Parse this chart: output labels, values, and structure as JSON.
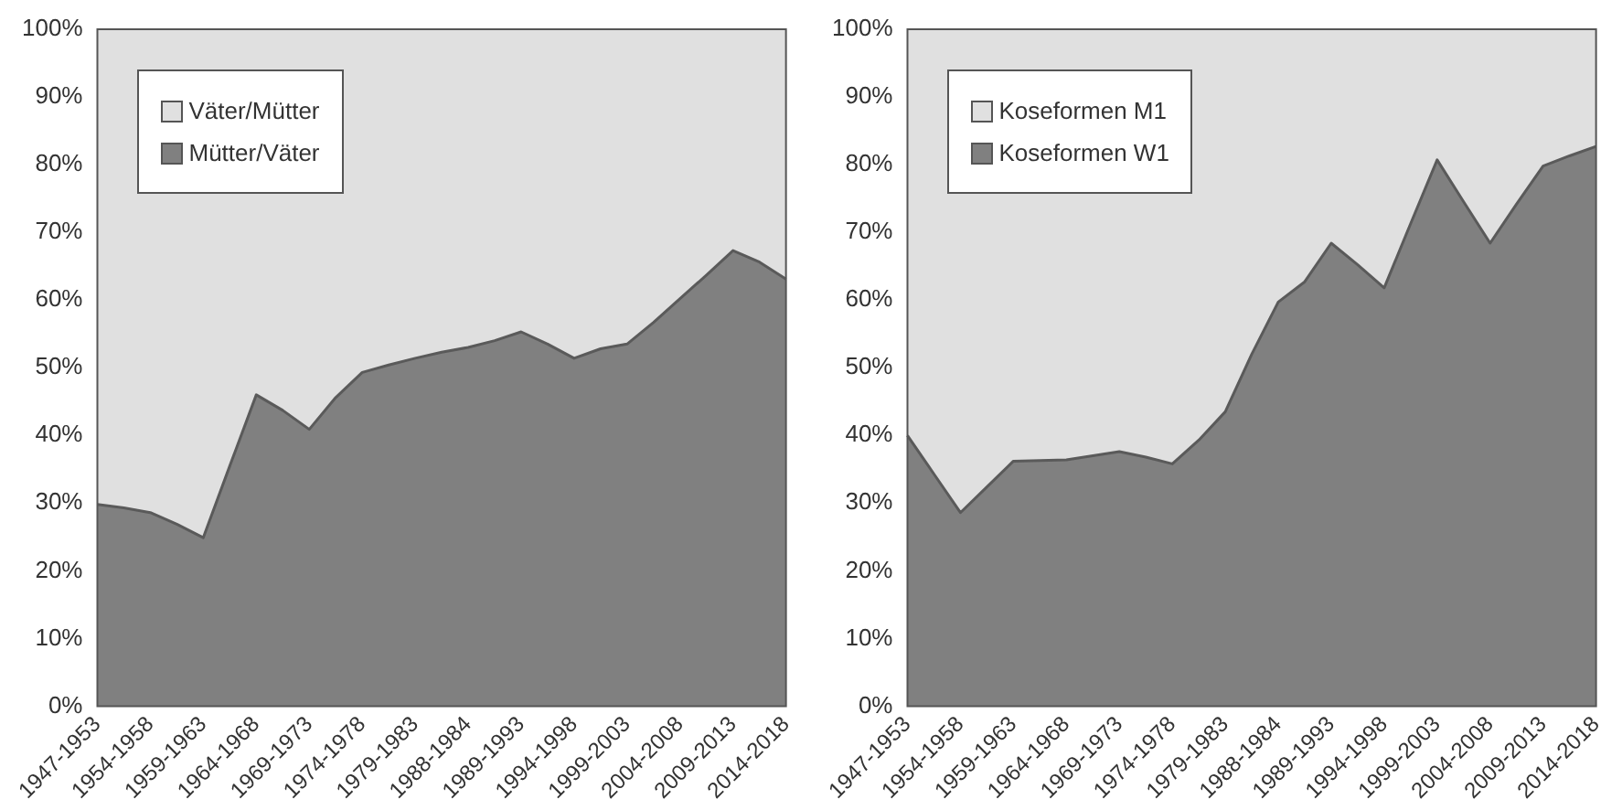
{
  "chart_data": [
    {
      "type": "area",
      "stacked": true,
      "legend": "top left",
      "grid": false,
      "categories": [
        "1947-1953",
        null,
        "1954-1958",
        null,
        "1959-1963",
        null,
        "1964-1968",
        null,
        "1969-1973",
        null,
        "1974-1978",
        null,
        "1979-1983",
        null,
        "1988-1984",
        null,
        "1989-1993",
        null,
        "1994-1998",
        null,
        "1999-2003",
        null,
        "2004-2008",
        null,
        "2009-2013",
        null,
        "2014-2018"
      ],
      "series": [
        {
          "name": "Mütter/Väter",
          "color": "#808080",
          "values": [
            29.8,
            29.3,
            28.6,
            26.9,
            24.9,
            35.5,
            46,
            43.7,
            40.9,
            45.6,
            49.3,
            50.4,
            51.4,
            52.3,
            53,
            54,
            55.3,
            53.5,
            51.4,
            52.8,
            53.5,
            56.7,
            60.2,
            63.7,
            67.3,
            65.6,
            63.1
          ]
        },
        {
          "name": "Väter/Mütter",
          "color": "#e0e0e0",
          "values": [
            70.2,
            70.7,
            71.4,
            73.1,
            75.1,
            64.5,
            54,
            56.3,
            59.1,
            54.4,
            50.7,
            49.6,
            48.6,
            47.7,
            47,
            46,
            44.7,
            46.5,
            48.6,
            47.2,
            46.5,
            43.3,
            39.8,
            36.3,
            32.7,
            34.4,
            36.9
          ]
        }
      ],
      "ylim": [
        0,
        100
      ],
      "yticks": [
        {
          "value": 0,
          "label": "0%"
        },
        {
          "value": 10,
          "label": "10%"
        },
        {
          "value": 20,
          "label": "20%"
        },
        {
          "value": 30,
          "label": "30%"
        },
        {
          "value": 40,
          "label": "40%"
        },
        {
          "value": 50,
          "label": "50%"
        },
        {
          "value": 60,
          "label": "60%"
        },
        {
          "value": 70,
          "label": "70%"
        },
        {
          "value": 80,
          "label": "80%"
        },
        {
          "value": 90,
          "label": "90%"
        },
        {
          "value": 100,
          "label": "100%"
        }
      ]
    },
    {
      "type": "area",
      "stacked": true,
      "legend": "top left",
      "grid": false,
      "categories": [
        "1947-1953",
        null,
        "1954-1958",
        null,
        "1959-1963",
        null,
        "1964-1968",
        null,
        "1969-1973",
        null,
        "1974-1978",
        null,
        "1979-1983",
        null,
        "1988-1984",
        null,
        "1989-1993",
        null,
        "1994-1998",
        null,
        "1999-2003",
        null,
        "2004-2008",
        null,
        "2009-2013",
        null,
        "2014-2018"
      ],
      "series": [
        {
          "name": "Koseformen W1",
          "color": "#808080",
          "values": [
            40,
            34.3,
            28.6,
            32.4,
            36.2,
            36.3,
            36.4,
            37,
            37.6,
            36.8,
            35.8,
            39.3,
            43.5,
            52,
            59.7,
            62.7,
            68.4,
            65.2,
            61.8,
            71.3,
            80.7,
            74.5,
            68.4,
            74.2,
            79.8,
            81.3,
            82.7
          ]
        },
        {
          "name": "Koseformen M1",
          "color": "#e0e0e0",
          "values": [
            60,
            65.7,
            71.4,
            67.6,
            63.8,
            63.7,
            63.6,
            63,
            62.4,
            63.2,
            64.2,
            60.7,
            56.5,
            48,
            40.3,
            37.3,
            31.6,
            34.8,
            38.2,
            28.7,
            19.3,
            25.5,
            31.6,
            25.8,
            20.2,
            18.7,
            17.3
          ]
        }
      ],
      "ylim": [
        0,
        100
      ],
      "yticks": [
        {
          "value": 0,
          "label": "0%"
        },
        {
          "value": 10,
          "label": "10%"
        },
        {
          "value": 20,
          "label": "20%"
        },
        {
          "value": 30,
          "label": "30%"
        },
        {
          "value": 40,
          "label": "40%"
        },
        {
          "value": 50,
          "label": "50%"
        },
        {
          "value": 60,
          "label": "60%"
        },
        {
          "value": 70,
          "label": "70%"
        },
        {
          "value": 80,
          "label": "80%"
        },
        {
          "value": 90,
          "label": "90%"
        },
        {
          "value": 100,
          "label": "100%"
        }
      ]
    }
  ]
}
